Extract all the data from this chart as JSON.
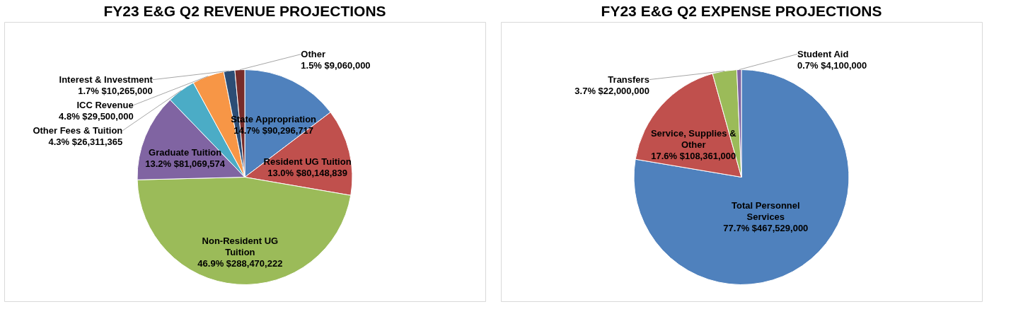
{
  "chart_data": [
    {
      "type": "pie",
      "title": "FY23 E&G Q2 REVENUE PROJECTIONS",
      "categories": [
        "State Appropriation",
        "Resident UG Tuition",
        "Non-Resident UG Tuition",
        "Graduate Tuition",
        "Other Fees & Tuition",
        "ICC Revenue",
        "Interest & Investment",
        "Other"
      ],
      "values": [
        90296717,
        80148839,
        288470222,
        81069574,
        26311365,
        29500000,
        10265000,
        9060000
      ],
      "value_labels": [
        "14.7% $90,296,717",
        "13.0% $80,148,839",
        "46.9% $288,470,222",
        "13.2% $81,069,574",
        "4.3% $26,311,365",
        "4.8% $29,500,000",
        "1.7% $10,265,000",
        "1.5% $9,060,000"
      ],
      "colors": [
        "#4f81bd",
        "#c0504d",
        "#9bbb59",
        "#8064a2",
        "#4bacc6",
        "#f79646",
        "#2c4d75",
        "#772c2a"
      ]
    },
    {
      "type": "pie",
      "title": "FY23 E&G Q2 EXPENSE PROJECTIONS",
      "categories": [
        "Total Personnel Services",
        "Service, Supplies & Other",
        "Transfers",
        "Student Aid"
      ],
      "values": [
        467529000,
        108361000,
        22000000,
        4100000
      ],
      "value_labels": [
        "77.7% $467,529,000",
        "17.6% $108,361,000",
        "3.7% $22,000,000",
        "0.7% $4,100,000"
      ],
      "colors": [
        "#4f81bd",
        "#c0504d",
        "#9bbb59",
        "#8064a2"
      ]
    }
  ]
}
